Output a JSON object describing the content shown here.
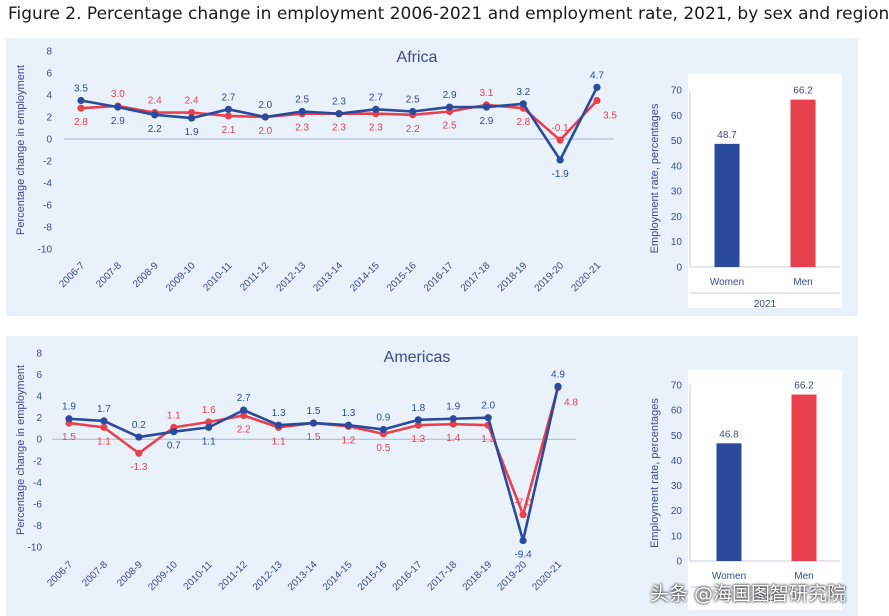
{
  "figure": {
    "title": "Figure 2. Percentage change in employment 2006-2021 and employment rate, 2021, by sex and region"
  },
  "colors": {
    "women": "#2a4a9e",
    "men": "#e8414d",
    "axis_text": "#3a4a8a",
    "axis_line": "#a9b3d0"
  },
  "watermark": {
    "text": "头条 @海国图智研究院"
  },
  "chart_data": [
    {
      "type": "line",
      "title": "Africa",
      "ylabel": "Percentage change in employment",
      "xlabel": "",
      "ylim": [
        -10,
        8
      ],
      "yticks": [
        8,
        6,
        4,
        2,
        0,
        -2,
        -4,
        -6,
        -8,
        -10
      ],
      "categories": [
        "2006-7",
        "2007-8",
        "2008-9",
        "2009-10",
        "2010-11",
        "2011-12",
        "2012-13",
        "2013-14",
        "2014-15",
        "2015-16",
        "2016-17",
        "2017-18",
        "2018-19",
        "2019-20",
        "2020-21"
      ],
      "series": [
        {
          "name": "Women",
          "values": [
            3.5,
            2.9,
            2.2,
            1.9,
            2.7,
            2.0,
            2.5,
            2.3,
            2.7,
            2.5,
            2.9,
            2.9,
            3.2,
            -1.9,
            4.7
          ],
          "labels": [
            "3.5",
            "2.9",
            "2.2",
            "1.9",
            "2.7",
            "2.0",
            "2.5",
            "2.3",
            "2.7",
            "2.5",
            "2.9",
            "2.9",
            "3.2",
            "-1.9",
            "4.7"
          ]
        },
        {
          "name": "Men",
          "values": [
            2.8,
            3.0,
            2.4,
            2.4,
            2.1,
            2.0,
            2.3,
            2.3,
            2.3,
            2.2,
            2.5,
            3.1,
            2.8,
            -0.1,
            3.5
          ],
          "labels": [
            "2.8",
            "3.0",
            "2.4",
            "2.4",
            "2.1",
            "2.0",
            "2.3",
            "2.3",
            "2.3",
            "2.2",
            "2.5",
            "3.1",
            "2.8",
            "-0.1",
            "3.5"
          ]
        }
      ],
      "label_positions": {
        "Women": [
          "above",
          "below",
          "below",
          "below",
          "above",
          "above",
          "above",
          "above",
          "above",
          "above",
          "above",
          "below",
          "above",
          "below",
          "above"
        ],
        "Men": [
          "below",
          "above",
          "above",
          "above",
          "below",
          "below",
          "below",
          "below",
          "below",
          "below",
          "below",
          "above",
          "below",
          "above",
          "right"
        ]
      }
    },
    {
      "type": "bar",
      "title": "",
      "ylabel": "Employment rate, percentages",
      "xlabel": "2021",
      "ylim": [
        0,
        70
      ],
      "yticks": [
        70,
        60,
        50,
        40,
        30,
        20,
        10,
        0
      ],
      "categories": [
        "Women",
        "Men"
      ],
      "values": [
        48.7,
        66.2
      ],
      "labels": [
        "48.7",
        "66.2"
      ]
    },
    {
      "type": "line",
      "title": "Americas",
      "ylabel": "Percentage change in employment",
      "xlabel": "",
      "ylim": [
        -10,
        8
      ],
      "yticks": [
        8,
        6,
        4,
        2,
        0,
        -2,
        -4,
        -6,
        -8,
        -10
      ],
      "categories": [
        "2006-7",
        "2007-8",
        "2008-9",
        "2009-10",
        "2010-11",
        "2011-12",
        "2012-13",
        "2013-14",
        "2014-15",
        "2015-16",
        "2016-17",
        "2017-18",
        "2018-19",
        "2019-20",
        "2020-21"
      ],
      "series": [
        {
          "name": "Women",
          "values": [
            1.9,
            1.7,
            0.2,
            0.7,
            1.1,
            2.7,
            1.3,
            1.5,
            1.3,
            0.9,
            1.8,
            1.9,
            2.0,
            -9.4,
            4.9
          ],
          "labels": [
            "1.9",
            "1.7",
            "0.2",
            "0.7",
            "1.1",
            "2.7",
            "1.3",
            "1.5",
            "1.3",
            "0.9",
            "1.8",
            "1.9",
            "2.0",
            "-9.4",
            "4.9"
          ]
        },
        {
          "name": "Men",
          "values": [
            1.5,
            1.1,
            -1.3,
            1.1,
            1.6,
            2.2,
            1.1,
            1.5,
            1.2,
            0.5,
            1.3,
            1.4,
            1.3,
            -7.0,
            4.8
          ],
          "labels": [
            "1.5",
            "1.1",
            "-1.3",
            "1.1",
            "1.6",
            "2.2",
            "1.1",
            "1.5",
            "1.2",
            "0.5",
            "1.3",
            "1.4",
            "1.3",
            "-7.0",
            "4.8"
          ]
        }
      ],
      "label_positions": {
        "Women": [
          "above",
          "above",
          "above",
          "below",
          "below",
          "above",
          "above",
          "above",
          "above",
          "above",
          "above",
          "above",
          "above",
          "below",
          "above"
        ],
        "Men": [
          "below",
          "below",
          "below",
          "above",
          "above",
          "below",
          "below",
          "below",
          "below",
          "below",
          "below",
          "below",
          "below",
          "above",
          "right"
        ]
      }
    },
    {
      "type": "bar",
      "title": "",
      "ylabel": "Employment rate, percentages",
      "xlabel": "2021",
      "ylim": [
        0,
        70
      ],
      "yticks": [
        70,
        60,
        50,
        40,
        30,
        20,
        10,
        0
      ],
      "categories": [
        "Women",
        "Men"
      ],
      "values": [
        46.8,
        66.2
      ],
      "labels": [
        "46.8",
        "66.2"
      ]
    }
  ]
}
